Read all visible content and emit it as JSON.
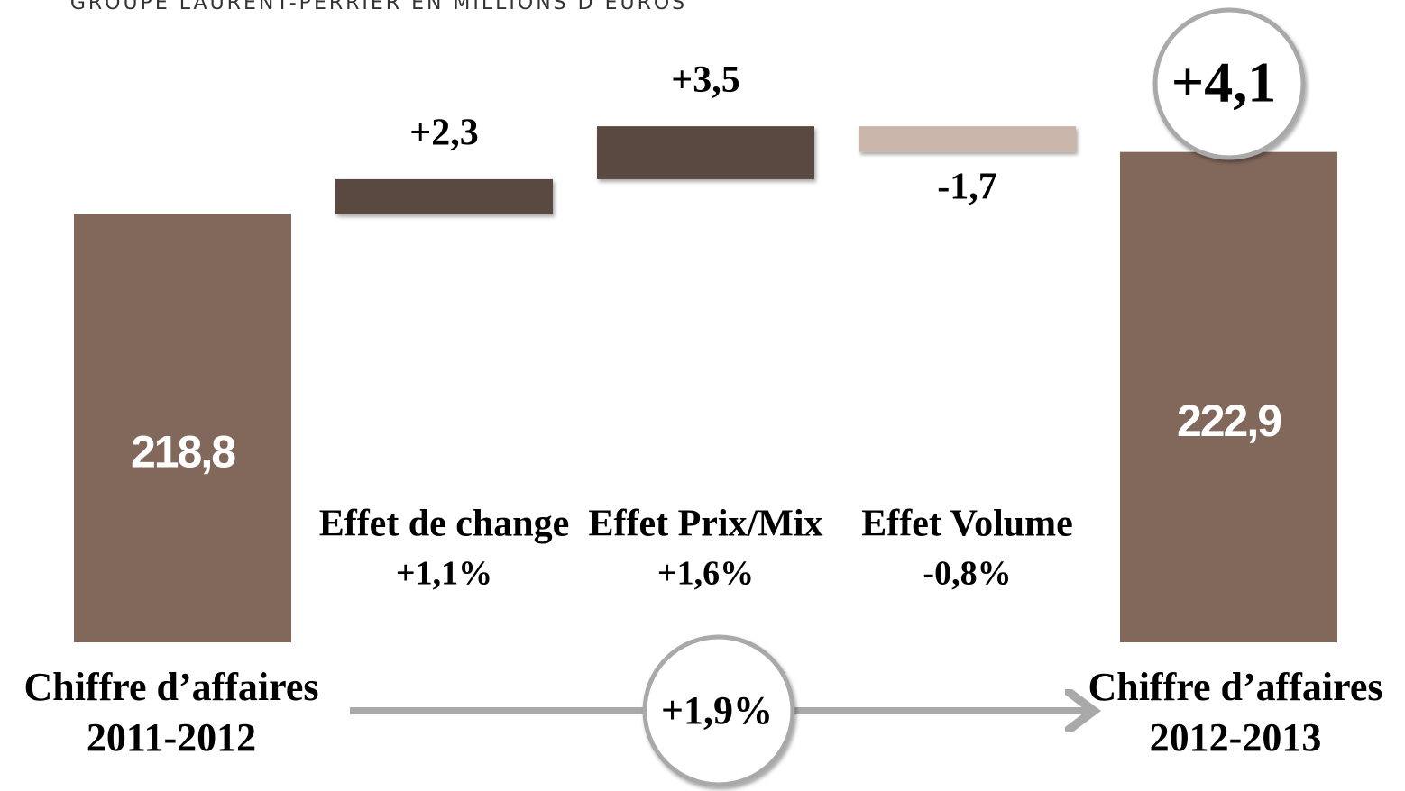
{
  "chart_data": {
    "type": "waterfall",
    "title": "Groupe Laurent-Perrier en millions d’euros",
    "categories": [
      [
        "Chiffre d’affaires",
        "2011-2012"
      ],
      [
        "Effet de change"
      ],
      [
        "Effet Prix/Mix"
      ],
      [
        "Effet Volume"
      ],
      [
        "Chiffre d’affaires",
        "2012-2013"
      ]
    ],
    "values": [
      218.8,
      2.3,
      3.5,
      -1.7,
      222.9
    ],
    "value_labels": [
      "218,8",
      "+2,3",
      "+3,5",
      "-1,7",
      "222,9"
    ],
    "percent_labels": [
      null,
      "+1,1%",
      "+1,6%",
      "-0,8%",
      null
    ],
    "total_change": {
      "value": 4.1,
      "label": "+4,1"
    },
    "total_change_percent": {
      "value": 1.9,
      "label": "+1,9%"
    },
    "colors": {
      "total": "#82685b",
      "increase": "#5a4840",
      "decrease": "#c9b5a9"
    },
    "ylim": [
      190.5,
      225.5
    ]
  }
}
